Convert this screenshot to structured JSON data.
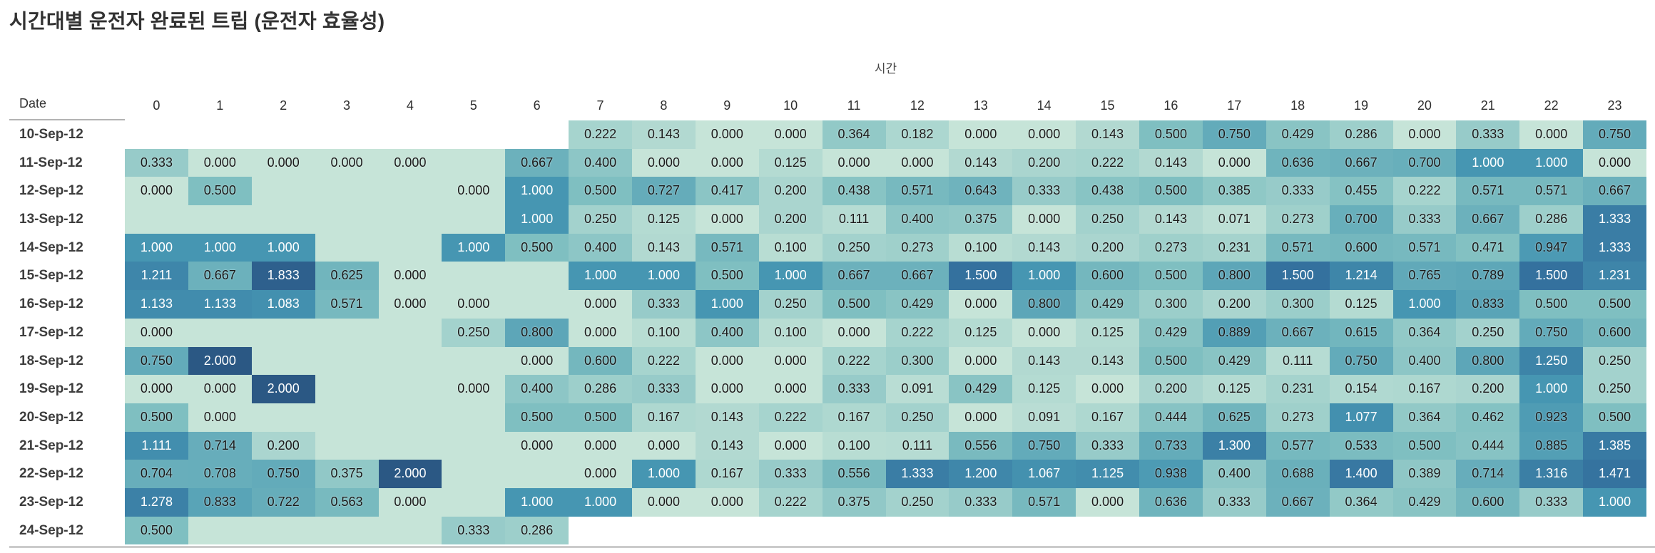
{
  "title": "시간대별 운전자 완료된 트립 (운전자 효율성)",
  "chart_data": {
    "type": "heatmap",
    "title": "시간대별 운전자 완료된 트립 (운전자 효율성)",
    "group_label": "시간",
    "row_header": "Date",
    "columns": [
      "0",
      "1",
      "2",
      "3",
      "4",
      "5",
      "6",
      "7",
      "8",
      "9",
      "10",
      "11",
      "12",
      "13",
      "14",
      "15",
      "16",
      "17",
      "18",
      "19",
      "20",
      "21",
      "22",
      "23"
    ],
    "value_range": [
      0,
      2
    ],
    "legend_position": "none",
    "color_scale": {
      "stops": [
        {
          "v": 0.0,
          "c": "#c6e4d8"
        },
        {
          "v": 0.5,
          "c": "#7fbfc1"
        },
        {
          "v": 1.0,
          "c": "#4696b2"
        },
        {
          "v": 1.5,
          "c": "#34719e"
        },
        {
          "v": 2.0,
          "c": "#2b5884"
        }
      ],
      "text_dark": "#1a1a1a",
      "text_light": "#ffffff",
      "light_text_threshold": 1.0
    },
    "rows": [
      {
        "date": "10-Sep-12",
        "values": [
          null,
          null,
          null,
          null,
          null,
          null,
          null,
          "0.222",
          "0.143",
          "0.000",
          "0.000",
          "0.364",
          "0.182",
          "0.000",
          "0.000",
          "0.143",
          "0.500",
          "0.750",
          "0.429",
          "0.286",
          "0.000",
          "0.333",
          "0.000",
          "0.750"
        ]
      },
      {
        "date": "11-Sep-12",
        "values": [
          "0.333",
          "0.000",
          "0.000",
          "0.000",
          "0.000",
          "",
          "0.667",
          "0.400",
          "0.000",
          "0.000",
          "0.125",
          "0.000",
          "0.000",
          "0.143",
          "0.200",
          "0.222",
          "0.143",
          "0.000",
          "0.636",
          "0.667",
          "0.700",
          "1.000",
          "1.000",
          "0.000"
        ]
      },
      {
        "date": "12-Sep-12",
        "values": [
          "0.000",
          "0.500",
          "",
          "",
          "",
          "0.000",
          "1.000",
          "0.500",
          "0.727",
          "0.417",
          "0.200",
          "0.438",
          "0.571",
          "0.643",
          "0.333",
          "0.438",
          "0.500",
          "0.385",
          "0.333",
          "0.455",
          "0.222",
          "0.571",
          "0.571",
          "0.667"
        ]
      },
      {
        "date": "13-Sep-12",
        "values": [
          "",
          "",
          "",
          "",
          "",
          "",
          "1.000",
          "0.250",
          "0.125",
          "0.000",
          "0.200",
          "0.111",
          "0.400",
          "0.375",
          "0.000",
          "0.250",
          "0.143",
          "0.071",
          "0.273",
          "0.700",
          "0.333",
          "0.667",
          "0.286",
          "1.333"
        ]
      },
      {
        "date": "14-Sep-12",
        "values": [
          "1.000",
          "1.000",
          "1.000",
          "",
          "",
          "1.000",
          "0.500",
          "0.400",
          "0.143",
          "0.571",
          "0.100",
          "0.250",
          "0.273",
          "0.100",
          "0.143",
          "0.200",
          "0.273",
          "0.231",
          "0.571",
          "0.600",
          "0.571",
          "0.471",
          "0.947",
          "1.333"
        ]
      },
      {
        "date": "15-Sep-12",
        "values": [
          "1.211",
          "0.667",
          "1.833",
          "0.625",
          "0.000",
          "",
          "",
          "1.000",
          "1.000",
          "0.500",
          "1.000",
          "0.667",
          "0.667",
          "1.500",
          "1.000",
          "0.600",
          "0.500",
          "0.800",
          "1.500",
          "1.214",
          "0.765",
          "0.789",
          "1.500",
          "1.231"
        ]
      },
      {
        "date": "16-Sep-12",
        "values": [
          "1.133",
          "1.133",
          "1.083",
          "0.571",
          "0.000",
          "0.000",
          "",
          "0.000",
          "0.333",
          "1.000",
          "0.250",
          "0.500",
          "0.429",
          "0.000",
          "0.800",
          "0.429",
          "0.300",
          "0.200",
          "0.300",
          "0.125",
          "1.000",
          "0.833",
          "0.500",
          "0.500"
        ]
      },
      {
        "date": "17-Sep-12",
        "values": [
          "0.000",
          "",
          "",
          "",
          "",
          "0.250",
          "0.800",
          "0.000",
          "0.100",
          "0.400",
          "0.100",
          "0.000",
          "0.222",
          "0.125",
          "0.000",
          "0.125",
          "0.429",
          "0.889",
          "0.667",
          "0.615",
          "0.364",
          "0.250",
          "0.750",
          "0.600"
        ]
      },
      {
        "date": "18-Sep-12",
        "values": [
          "0.750",
          "2.000",
          "",
          "",
          "",
          "",
          "0.000",
          "0.600",
          "0.222",
          "0.000",
          "0.000",
          "0.222",
          "0.300",
          "0.000",
          "0.143",
          "0.143",
          "0.500",
          "0.429",
          "0.111",
          "0.750",
          "0.400",
          "0.800",
          "1.250",
          "0.250"
        ]
      },
      {
        "date": "19-Sep-12",
        "values": [
          "0.000",
          "0.000",
          "2.000",
          "",
          "",
          "0.000",
          "0.400",
          "0.286",
          "0.333",
          "0.000",
          "0.000",
          "0.333",
          "0.091",
          "0.429",
          "0.125",
          "0.000",
          "0.200",
          "0.125",
          "0.231",
          "0.154",
          "0.167",
          "0.200",
          "1.000",
          "0.250"
        ]
      },
      {
        "date": "20-Sep-12",
        "values": [
          "0.500",
          "0.000",
          "",
          "",
          "",
          "",
          "0.500",
          "0.500",
          "0.167",
          "0.143",
          "0.222",
          "0.167",
          "0.250",
          "0.000",
          "0.091",
          "0.167",
          "0.444",
          "0.625",
          "0.273",
          "1.077",
          "0.364",
          "0.462",
          "0.923",
          "0.500"
        ]
      },
      {
        "date": "21-Sep-12",
        "values": [
          "1.111",
          "0.714",
          "0.200",
          "",
          "",
          "",
          "0.000",
          "0.000",
          "0.000",
          "0.143",
          "0.000",
          "0.100",
          "0.111",
          "0.556",
          "0.750",
          "0.333",
          "0.733",
          "1.300",
          "0.577",
          "0.533",
          "0.500",
          "0.444",
          "0.885",
          "1.385"
        ]
      },
      {
        "date": "22-Sep-12",
        "values": [
          "0.704",
          "0.708",
          "0.750",
          "0.375",
          "2.000",
          "",
          "",
          "0.000",
          "1.000",
          "0.167",
          "0.333",
          "0.556",
          "1.333",
          "1.200",
          "1.067",
          "1.125",
          "0.938",
          "0.400",
          "0.688",
          "1.400",
          "0.389",
          "0.714",
          "1.316",
          "1.471"
        ]
      },
      {
        "date": "23-Sep-12",
        "values": [
          "1.278",
          "0.833",
          "0.722",
          "0.563",
          "0.000",
          "",
          "1.000",
          "1.000",
          "0.000",
          "0.000",
          "0.222",
          "0.375",
          "0.250",
          "0.333",
          "0.571",
          "0.000",
          "0.636",
          "0.333",
          "0.667",
          "0.364",
          "0.429",
          "0.600",
          "0.333",
          "1.000"
        ]
      },
      {
        "date": "24-Sep-12",
        "values": [
          "0.500",
          "",
          "",
          "",
          "",
          "0.333",
          "0.286",
          null,
          null,
          null,
          null,
          null,
          null,
          null,
          null,
          null,
          null,
          null,
          null,
          null,
          null,
          null,
          null,
          null
        ]
      }
    ]
  }
}
